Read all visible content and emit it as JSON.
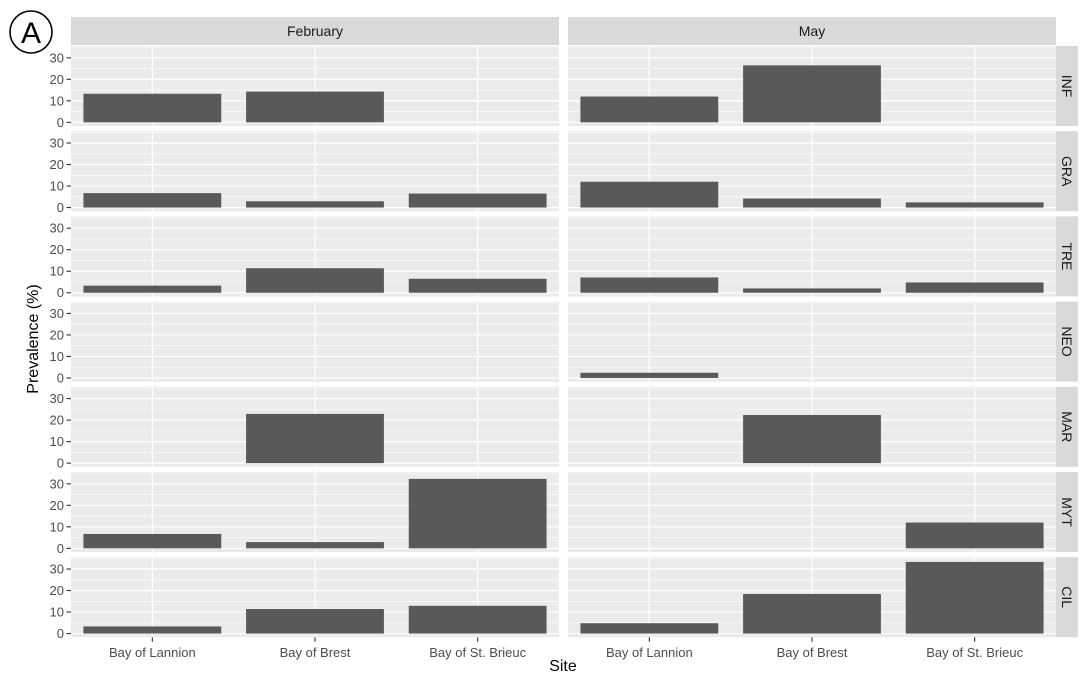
{
  "chart_data": {
    "type": "bar",
    "panel_label": "A",
    "xlabel": "Site",
    "ylabel": "Prevalence (%)",
    "columns": [
      "February",
      "May"
    ],
    "rows": [
      "INF",
      "GRA",
      "TRE",
      "NEO",
      "MAR",
      "MYT",
      "CIL"
    ],
    "categories": [
      "Bay of Lannion",
      "Bay of Brest",
      "Bay of St. Brieuc"
    ],
    "yticks": [
      0,
      10,
      20,
      30
    ],
    "ylim": [
      -1.7,
      35.5
    ],
    "grid": true,
    "values": {
      "February": {
        "INF": [
          13.3,
          14.3,
          0
        ],
        "GRA": [
          6.7,
          2.9,
          6.5
        ],
        "TRE": [
          3.3,
          11.4,
          6.5
        ],
        "NEO": [
          0,
          0,
          0
        ],
        "MAR": [
          0,
          22.9,
          0
        ],
        "MYT": [
          6.7,
          2.9,
          32.3
        ],
        "CIL": [
          3.3,
          11.4,
          12.9
        ]
      },
      "May": {
        "INF": [
          12.0,
          26.5,
          0
        ],
        "GRA": [
          12.0,
          4.2,
          2.4
        ],
        "TRE": [
          7.1,
          2.0,
          4.8
        ],
        "NEO": [
          2.4,
          0,
          0
        ],
        "MAR": [
          0,
          22.4,
          0
        ],
        "MYT": [
          0,
          0,
          12.0
        ],
        "CIL": [
          4.8,
          18.4,
          33.3
        ]
      }
    }
  }
}
